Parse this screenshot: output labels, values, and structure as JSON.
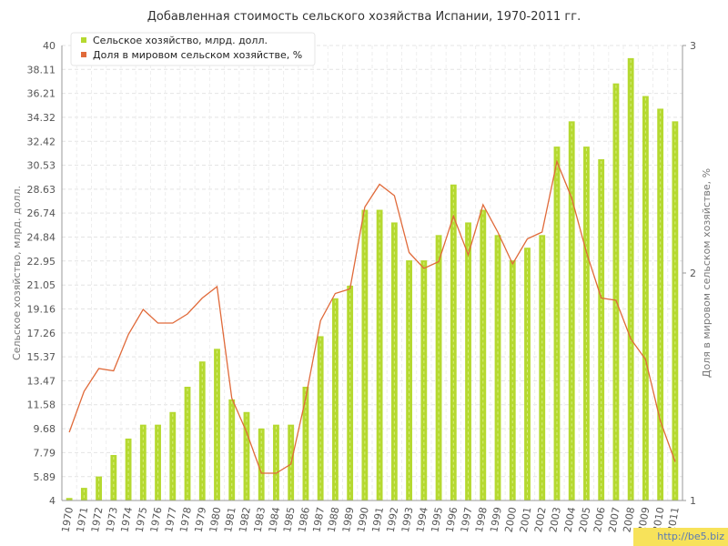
{
  "watermark": "http://be5.biz",
  "chart_data": {
    "type": "bar",
    "title": "Добавленная стоимость сельского хозяйства Испании, 1970-2011 гг.",
    "ylabel": "Сельское хозяйство, млрд. долл.",
    "y2label": "Доля в мировом сельском хозяйстве, %",
    "ylim": [
      4,
      40
    ],
    "y2lim": [
      1,
      3
    ],
    "yticks": [
      "4",
      "5.89",
      "7.79",
      "9.68",
      "11.58",
      "13.47",
      "15.37",
      "17.26",
      "19.16",
      "21.05",
      "22.95",
      "24.84",
      "26.74",
      "28.63",
      "30.53",
      "32.42",
      "34.32",
      "36.21",
      "38.11",
      "40"
    ],
    "y2ticks": [
      "1",
      "2",
      "3"
    ],
    "grid": true,
    "legend_position": "top-left",
    "categories": [
      "1970",
      "1971",
      "1972",
      "1973",
      "1974",
      "1975",
      "1976",
      "1977",
      "1978",
      "1979",
      "1980",
      "1981",
      "1982",
      "1983",
      "1984",
      "1985",
      "1986",
      "1987",
      "1988",
      "1989",
      "1990",
      "1991",
      "1992",
      "1993",
      "1994",
      "1995",
      "1996",
      "1997",
      "1998",
      "1999",
      "2000",
      "2001",
      "2002",
      "2003",
      "2004",
      "2005",
      "2006",
      "2007",
      "2008",
      "2009",
      "2010",
      "2011"
    ],
    "series": [
      {
        "name": "Сельское хозяйство, млрд. долл.",
        "type": "bar",
        "axis": "left",
        "color": "#b5d930",
        "values": [
          4.2,
          5.0,
          5.9,
          7.6,
          8.9,
          10.0,
          10.0,
          11.0,
          13.0,
          15.0,
          16.0,
          12.0,
          11.0,
          9.7,
          10.0,
          10.0,
          13.0,
          17.0,
          20.0,
          21.0,
          27.0,
          27.0,
          26.0,
          23.0,
          23.0,
          25.0,
          29.0,
          26.0,
          27.0,
          25.0,
          23.0,
          24.0,
          25.0,
          32.0,
          34.0,
          32.0,
          31.0,
          37.0,
          39.0,
          36.0,
          35.0,
          34.0
        ]
      },
      {
        "name": "Доля в мировом сельском хозяйстве, %",
        "type": "line",
        "axis": "right",
        "color": "#e06a3a",
        "values": [
          1.3,
          1.48,
          1.58,
          1.57,
          1.73,
          1.84,
          1.78,
          1.78,
          1.82,
          1.89,
          1.94,
          1.45,
          1.3,
          1.12,
          1.12,
          1.16,
          1.45,
          1.79,
          1.91,
          1.93,
          2.29,
          2.39,
          2.34,
          2.09,
          2.02,
          2.05,
          2.25,
          2.08,
          2.3,
          2.18,
          2.04,
          2.15,
          2.18,
          2.49,
          2.33,
          2.09,
          1.89,
          1.88,
          1.71,
          1.62,
          1.35,
          1.17
        ]
      }
    ]
  }
}
